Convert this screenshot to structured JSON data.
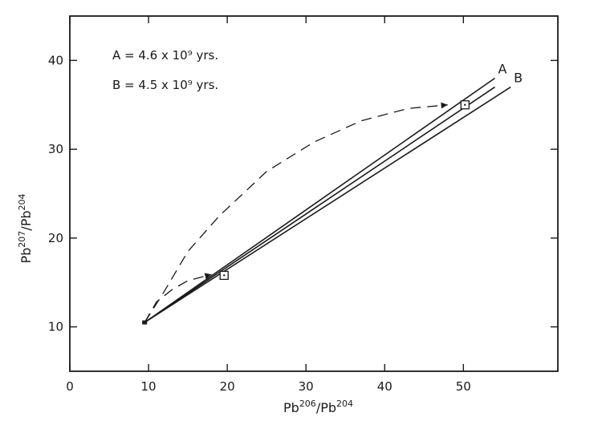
{
  "chart_data": {
    "type": "line",
    "xlabel": "Pb206/Pb204",
    "ylabel": "Pb207/Pb204",
    "xlim": [
      0,
      62
    ],
    "ylim": [
      5,
      45
    ],
    "x_ticks": [
      0,
      10,
      20,
      30,
      40,
      50
    ],
    "y_ticks": [
      10,
      20,
      30,
      40
    ],
    "grid": false,
    "annotations": {
      "age_a": "A = 4.6 x 10⁹ yrs.",
      "age_b": "B = 4.5 x 10⁹ yrs."
    },
    "series": [
      {
        "name": "A",
        "style": "solid",
        "points": [
          [
            9.5,
            10.5
          ],
          [
            54,
            38
          ]
        ]
      },
      {
        "name": "",
        "style": "solid",
        "points": [
          [
            9.5,
            10.5
          ],
          [
            54,
            37
          ]
        ]
      },
      {
        "name": "B",
        "style": "solid",
        "points": [
          [
            9.5,
            10.5
          ],
          [
            56,
            37
          ]
        ]
      },
      {
        "name": "",
        "style": "dashed",
        "points": [
          [
            9.5,
            10.5
          ],
          [
            12,
            14
          ],
          [
            15,
            18.5
          ],
          [
            19,
            22.5
          ],
          [
            25,
            27.5
          ],
          [
            31,
            30.8
          ],
          [
            37,
            33.2
          ],
          [
            43,
            34.6
          ],
          [
            48,
            35
          ]
        ]
      },
      {
        "name": "",
        "style": "dashed",
        "points": [
          [
            9.5,
            10.5
          ],
          [
            11,
            12.8
          ],
          [
            13,
            14.2
          ],
          [
            15,
            15.2
          ],
          [
            18,
            15.9
          ]
        ]
      }
    ],
    "markers": [
      {
        "label": "",
        "x": 50.2,
        "y": 35
      },
      {
        "label": "",
        "x": 19.6,
        "y": 15.8
      }
    ],
    "origin_point": {
      "x": 9.5,
      "y": 10.5
    },
    "colors": {
      "ink": "#1a1a1a",
      "background": "#ffffff"
    }
  }
}
